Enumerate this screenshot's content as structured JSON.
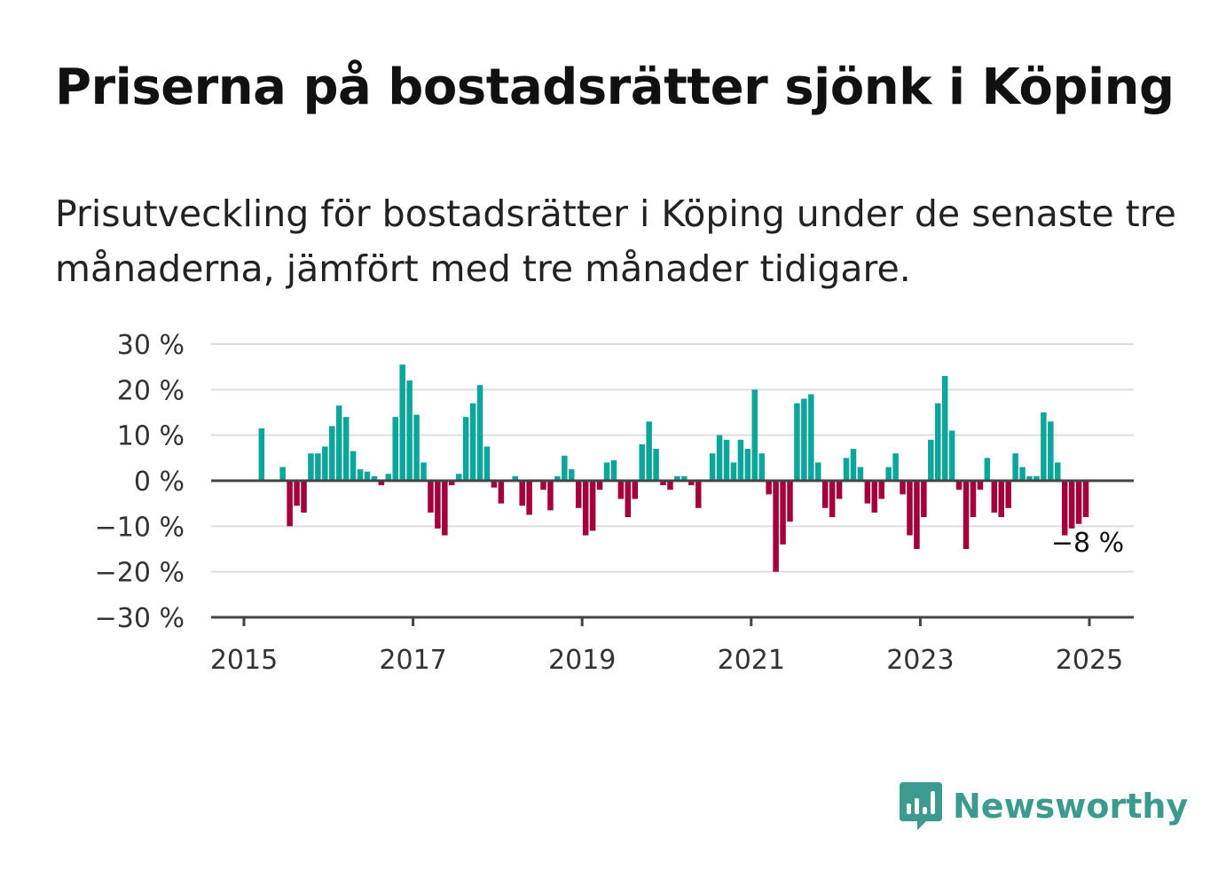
{
  "title": "Priserna på bostadsrätter sjönk i Köping",
  "subtitle": "Prisutveckling för bostadsrätter i Köping under de senaste tre månaderna, jämfört med tre månader tidigare.",
  "brand": {
    "name": "Newsworthy",
    "color": "#3d9a8f",
    "icon": "chart-speech-bubble-icon"
  },
  "colors": {
    "positive": "#0ea59b",
    "negative": "#a3003c",
    "grid": "#dddddd",
    "axis": "#444444"
  },
  "chart_data": {
    "type": "bar",
    "ylim": [
      -30,
      30
    ],
    "yticks": [
      30,
      20,
      10,
      0,
      -10,
      -20,
      -30
    ],
    "ytick_labels": [
      "30 %",
      "20 %",
      "10 %",
      "0 %",
      "−10 %",
      "−20 %",
      "−30 %"
    ],
    "xticks": [
      2015,
      2017,
      2019,
      2021,
      2023,
      2025
    ],
    "xtick_labels": [
      "2015",
      "2017",
      "2019",
      "2021",
      "2023",
      "2025"
    ],
    "x_start": "2015-01",
    "x_end": "2024-12",
    "values": [
      null,
      null,
      11.5,
      null,
      null,
      3,
      -10,
      -5.5,
      -7,
      6,
      6,
      7.5,
      12,
      16.5,
      14,
      6.5,
      2.5,
      2,
      1,
      -1,
      1.5,
      14,
      25.5,
      22,
      14.5,
      4,
      -7,
      -10.5,
      -12,
      -1,
      1.5,
      14,
      17,
      21,
      7.5,
      -1.5,
      -5,
      null,
      1,
      -5.5,
      -7.5,
      null,
      -2,
      -6.5,
      1,
      5.5,
      2.5,
      -6,
      -12,
      -11,
      -2,
      4,
      4.5,
      -4,
      -8,
      -4,
      8,
      13,
      7,
      -1,
      -2,
      1,
      1,
      -1,
      -6,
      null,
      6,
      10,
      9,
      4,
      9,
      7,
      20,
      6,
      -3,
      -20,
      -14,
      -9,
      17,
      18,
      19,
      4,
      -6,
      -8,
      -4,
      5,
      7,
      3,
      -5,
      -7,
      -4,
      3,
      6,
      -3,
      -12,
      -15,
      -8,
      9,
      17,
      23,
      11,
      -2,
      -15,
      -8,
      -2,
      5,
      -7,
      -8,
      -6,
      6,
      3,
      1,
      1,
      15,
      13,
      4,
      -12,
      -10.5,
      -9.5,
      -8
    ],
    "last_value_label": "−8 %"
  }
}
